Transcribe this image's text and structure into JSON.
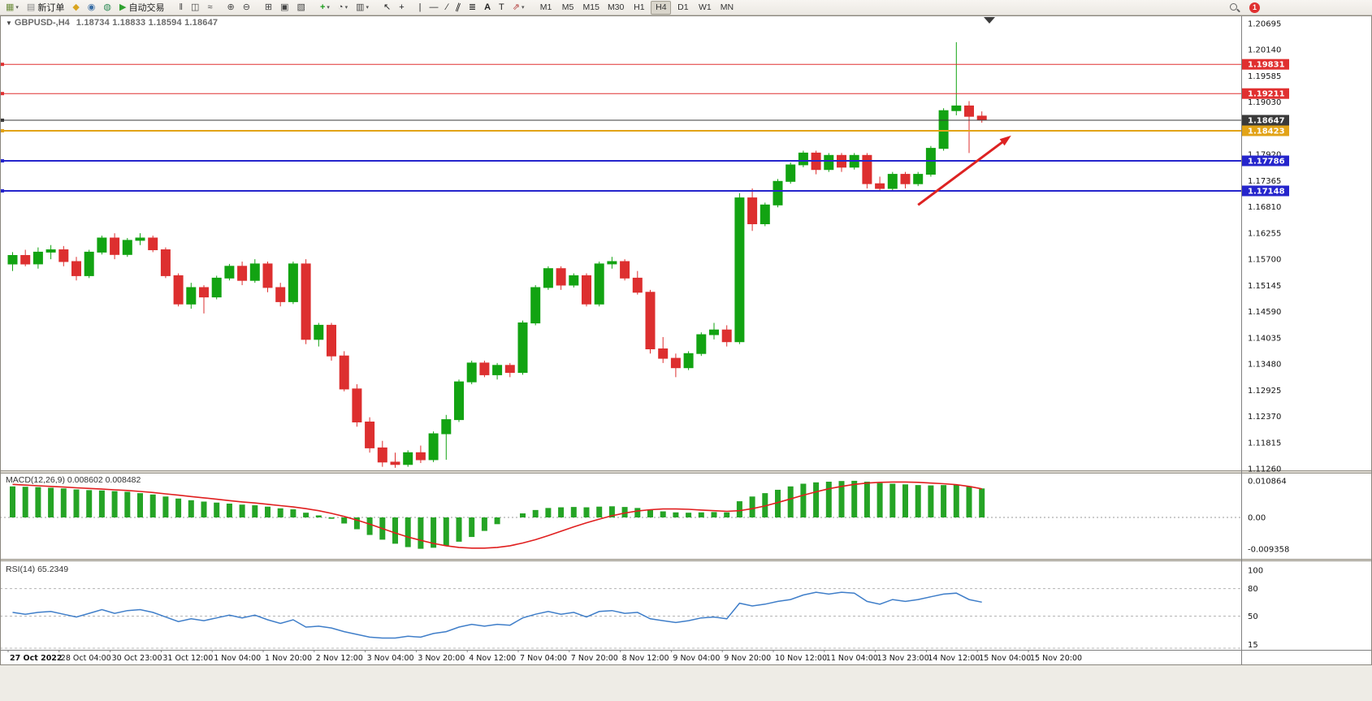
{
  "toolbar": {
    "groups": [
      [
        {
          "name": "new-chart",
          "icon": "new-chart-icon",
          "caret": true
        },
        {
          "name": "new-order",
          "icon": "new-order-icon",
          "label": "新订单"
        },
        {
          "name": "chart-wizard",
          "icon": "chart-wizard-icon"
        },
        {
          "name": "market-watch",
          "icon": "market-watch-icon"
        },
        {
          "name": "data-window",
          "icon": "data-window-icon"
        },
        {
          "name": "auto-trading",
          "icon": "autotrading-icon",
          "label": "自动交易"
        }
      ],
      [
        {
          "name": "bar-chart",
          "icon": "bars-icon"
        },
        {
          "name": "candlestick-chart",
          "icon": "candles-icon"
        },
        {
          "name": "line-chart",
          "icon": "line-chart-icon"
        }
      ],
      [
        {
          "name": "zoom-in",
          "icon": "zoom-in-icon"
        },
        {
          "name": "zoom-out",
          "icon": "zoom-out-icon"
        }
      ],
      [
        {
          "name": "tile-windows",
          "icon": "tile-windows-icon"
        },
        {
          "name": "auto-arrange",
          "icon": "arrange-icon"
        },
        {
          "name": "cascade-windows",
          "icon": "cascade-windows-icon"
        }
      ],
      [
        {
          "name": "indicators",
          "icon": "indicators-icon",
          "caret": true
        },
        {
          "name": "periods",
          "icon": "periods-icon",
          "caret": true
        },
        {
          "name": "templates",
          "icon": "templates-icon",
          "caret": true
        }
      ],
      [
        {
          "name": "cursor",
          "icon": "cursor-icon"
        },
        {
          "name": "crosshair",
          "icon": "crosshair-icon"
        }
      ],
      [
        {
          "name": "vertical-line",
          "icon": "vline-icon"
        },
        {
          "name": "horizontal-line",
          "icon": "hline-icon"
        },
        {
          "name": "trendline",
          "icon": "trendline-icon"
        },
        {
          "name": "equidistant-channel",
          "icon": "channel-icon"
        },
        {
          "name": "fibonacci",
          "icon": "fibonacci-icon"
        },
        {
          "name": "text",
          "icon": "text-icon"
        },
        {
          "name": "text-label",
          "icon": "label-icon"
        },
        {
          "name": "arrows",
          "icon": "arrows-icon",
          "caret": true
        }
      ]
    ],
    "timeframes": [
      "M1",
      "M5",
      "M15",
      "M30",
      "H1",
      "H4",
      "D1",
      "W1",
      "MN"
    ],
    "active_timeframe": "H4",
    "notification_badge": "1"
  },
  "chart": {
    "header": {
      "collapse_icon": "▼",
      "symbol": "GBPUSD-,H4",
      "open": "1.18734",
      "high": "1.18833",
      "low": "1.18594",
      "close": "1.18647"
    },
    "macd_label": "MACD(12,26,9) 0.008602 0.008482",
    "rsi_label": "RSI(14) 65.2349"
  },
  "chart_data": {
    "type": "candlestick",
    "symbol": "GBPUSD-,H4",
    "timeframe": "H4",
    "current_bar_ohlc": {
      "open": 1.18734,
      "high": 1.18833,
      "low": 1.18594,
      "close": 1.18647
    },
    "colors": {
      "up": "#12a312",
      "down": "#dd2f2f",
      "macd_histogram": "#25a425",
      "macd_signal": "#e01f1f",
      "rsi_line": "#3f7ec9",
      "arrow": "#dd2222",
      "current_price_line": "#3a3a3a"
    },
    "price_axis_labels": [
      "1.20695",
      "1.20140",
      "1.19585",
      "1.19030",
      "1.18475",
      "1.17920",
      "1.17365",
      "1.16810",
      "1.16255",
      "1.15700",
      "1.15145",
      "1.14590",
      "1.14035",
      "1.13480",
      "1.12925",
      "1.12370",
      "1.11815",
      "1.11260"
    ],
    "time_axis_labels": [
      "27 Oct 2022",
      "28 Oct 04:00",
      "30 Oct 23:00",
      "31 Oct 12:00",
      "1 Nov 04:00",
      "1 Nov 20:00",
      "2 Nov 12:00",
      "3 Nov 04:00",
      "3 Nov 20:00",
      "4 Nov 12:00",
      "7 Nov 04:00",
      "7 Nov 20:00",
      "8 Nov 12:00",
      "9 Nov 04:00",
      "9 Nov 20:00",
      "10 Nov 12:00",
      "11 Nov 04:00",
      "13 Nov 23:00",
      "14 Nov 12:00",
      "15 Nov 04:00",
      "15 Nov 20:00"
    ],
    "hlines": [
      {
        "price": 1.19831,
        "label": "1.19831",
        "color": "#e03030",
        "width": 1
      },
      {
        "price": 1.19211,
        "label": "1.19211",
        "color": "#e03030",
        "width": 1
      },
      {
        "price": 1.18647,
        "label": "1.18647",
        "color": "#3a3a3a",
        "width": 1,
        "role": "current-price"
      },
      {
        "price": 1.18423,
        "label": "1.18423",
        "color": "#e2a317",
        "width": 2
      },
      {
        "price": 1.17786,
        "label": "1.17786",
        "color": "#2525cc",
        "width": 2
      },
      {
        "price": 1.17148,
        "label": "1.17148",
        "color": "#2525cc",
        "width": 2
      }
    ],
    "candles": [
      [
        1.156,
        1.1585,
        1.1545,
        1.1578
      ],
      [
        1.1578,
        1.159,
        1.1555,
        1.156
      ],
      [
        1.156,
        1.1595,
        1.155,
        1.1585
      ],
      [
        1.1585,
        1.16,
        1.157,
        1.159
      ],
      [
        1.159,
        1.1598,
        1.1555,
        1.1565
      ],
      [
        1.1565,
        1.1575,
        1.1525,
        1.1535
      ],
      [
        1.1535,
        1.159,
        1.153,
        1.1585
      ],
      [
        1.1585,
        1.162,
        1.158,
        1.1615
      ],
      [
        1.1615,
        1.1625,
        1.157,
        1.158
      ],
      [
        1.158,
        1.1615,
        1.1575,
        1.161
      ],
      [
        1.161,
        1.1625,
        1.16,
        1.1615
      ],
      [
        1.1615,
        1.162,
        1.1585,
        1.159
      ],
      [
        1.159,
        1.1595,
        1.153,
        1.1535
      ],
      [
        1.1535,
        1.154,
        1.147,
        1.1475
      ],
      [
        1.1475,
        1.152,
        1.1465,
        1.151
      ],
      [
        1.151,
        1.1515,
        1.1455,
        1.149
      ],
      [
        1.149,
        1.1535,
        1.1485,
        1.153
      ],
      [
        1.153,
        1.156,
        1.1525,
        1.1555
      ],
      [
        1.1555,
        1.1565,
        1.1515,
        1.1525
      ],
      [
        1.1525,
        1.157,
        1.152,
        1.156
      ],
      [
        1.156,
        1.1565,
        1.15,
        1.151
      ],
      [
        1.151,
        1.152,
        1.147,
        1.148
      ],
      [
        1.148,
        1.1565,
        1.1475,
        1.156
      ],
      [
        1.156,
        1.157,
        1.139,
        1.14
      ],
      [
        1.14,
        1.1435,
        1.1385,
        1.143
      ],
      [
        1.143,
        1.1435,
        1.1355,
        1.1365
      ],
      [
        1.1365,
        1.1375,
        1.129,
        1.1295
      ],
      [
        1.1295,
        1.1305,
        1.1215,
        1.1225
      ],
      [
        1.1225,
        1.1235,
        1.116,
        1.117
      ],
      [
        1.117,
        1.1185,
        1.113,
        1.114
      ],
      [
        1.114,
        1.116,
        1.1128,
        1.1135
      ],
      [
        1.1135,
        1.1165,
        1.113,
        1.116
      ],
      [
        1.116,
        1.1175,
        1.1138,
        1.1145
      ],
      [
        1.1145,
        1.1205,
        1.114,
        1.12
      ],
      [
        1.12,
        1.124,
        1.1145,
        1.123
      ],
      [
        1.123,
        1.1315,
        1.1225,
        1.131
      ],
      [
        1.131,
        1.1355,
        1.1305,
        1.135
      ],
      [
        1.135,
        1.1355,
        1.132,
        1.1325
      ],
      [
        1.1325,
        1.135,
        1.1315,
        1.1345
      ],
      [
        1.1345,
        1.135,
        1.132,
        1.133
      ],
      [
        1.133,
        1.144,
        1.1325,
        1.1435
      ],
      [
        1.1435,
        1.1515,
        1.143,
        1.151
      ],
      [
        1.151,
        1.1555,
        1.1505,
        1.155
      ],
      [
        1.155,
        1.1555,
        1.1505,
        1.1515
      ],
      [
        1.1515,
        1.154,
        1.151,
        1.1535
      ],
      [
        1.1535,
        1.154,
        1.147,
        1.1475
      ],
      [
        1.1475,
        1.1565,
        1.147,
        1.156
      ],
      [
        1.156,
        1.1575,
        1.155,
        1.1565
      ],
      [
        1.1565,
        1.157,
        1.1525,
        1.153
      ],
      [
        1.153,
        1.1545,
        1.1495,
        1.15
      ],
      [
        1.15,
        1.1505,
        1.137,
        1.138
      ],
      [
        1.138,
        1.1405,
        1.135,
        1.136
      ],
      [
        1.136,
        1.137,
        1.132,
        1.134
      ],
      [
        1.134,
        1.1375,
        1.1335,
        1.137
      ],
      [
        1.137,
        1.1415,
        1.1365,
        1.141
      ],
      [
        1.141,
        1.1435,
        1.14,
        1.142
      ],
      [
        1.142,
        1.143,
        1.1385,
        1.1395
      ],
      [
        1.1395,
        1.171,
        1.139,
        1.17
      ],
      [
        1.17,
        1.172,
        1.163,
        1.1645
      ],
      [
        1.1645,
        1.169,
        1.164,
        1.1685
      ],
      [
        1.1685,
        1.174,
        1.168,
        1.1735
      ],
      [
        1.1735,
        1.1775,
        1.173,
        1.177
      ],
      [
        1.177,
        1.18,
        1.1765,
        1.1795
      ],
      [
        1.1795,
        1.18,
        1.175,
        1.176
      ],
      [
        1.176,
        1.1795,
        1.1755,
        1.179
      ],
      [
        1.179,
        1.1795,
        1.1755,
        1.1765
      ],
      [
        1.1765,
        1.1795,
        1.176,
        1.179
      ],
      [
        1.179,
        1.1795,
        1.172,
        1.173
      ],
      [
        1.173,
        1.1745,
        1.1715,
        1.172
      ],
      [
        1.172,
        1.1755,
        1.1715,
        1.175
      ],
      [
        1.175,
        1.1755,
        1.172,
        1.173
      ],
      [
        1.173,
        1.1755,
        1.1725,
        1.175
      ],
      [
        1.175,
        1.181,
        1.1745,
        1.1805
      ],
      [
        1.1805,
        1.189,
        1.18,
        1.1885
      ],
      [
        1.1885,
        1.203,
        1.1875,
        1.1895
      ],
      [
        1.1895,
        1.1905,
        1.1795,
        1.1873
      ],
      [
        1.18734,
        1.18833,
        1.18594,
        1.18647
      ]
    ],
    "macd": {
      "main_value": 0.008602,
      "signal_value": 0.008482,
      "axis_labels": [
        "0.010864",
        "0.00",
        "-0.009358"
      ],
      "histogram": [
        0.0092,
        0.0091,
        0.009,
        0.0088,
        0.0086,
        0.0083,
        0.0081,
        0.008,
        0.0078,
        0.0076,
        0.0072,
        0.0068,
        0.0062,
        0.0056,
        0.0051,
        0.0047,
        0.0044,
        0.0041,
        0.0038,
        0.0036,
        0.0032,
        0.0027,
        0.0024,
        0.0014,
        0.0006,
        -0.0004,
        -0.0018,
        -0.0035,
        -0.0052,
        -0.0066,
        -0.0078,
        -0.0088,
        -0.0093,
        -0.009,
        -0.0083,
        -0.0072,
        -0.0058,
        -0.004,
        -0.002,
        0.0,
        0.0012,
        0.0022,
        0.0028,
        0.003,
        0.0031,
        0.003,
        0.0032,
        0.0033,
        0.0031,
        0.0028,
        0.0022,
        0.0018,
        0.0015,
        0.0014,
        0.0015,
        0.0016,
        0.0015,
        0.0048,
        0.0062,
        0.0072,
        0.0082,
        0.0092,
        0.01,
        0.0104,
        0.0106,
        0.0108,
        0.01086,
        0.0106,
        0.0102,
        0.01,
        0.0098,
        0.0096,
        0.0095,
        0.0096,
        0.0097,
        0.0093,
        0.0086
      ],
      "signal": [
        0.0098,
        0.0096,
        0.0094,
        0.0092,
        0.009,
        0.0088,
        0.0086,
        0.0084,
        0.0082,
        0.008,
        0.0077,
        0.0074,
        0.007,
        0.0066,
        0.0062,
        0.0058,
        0.0054,
        0.005,
        0.0046,
        0.0043,
        0.0039,
        0.0035,
        0.0031,
        0.0026,
        0.002,
        0.0012,
        0.0003,
        -0.0008,
        -0.002,
        -0.0033,
        -0.0046,
        -0.0058,
        -0.0068,
        -0.0077,
        -0.0084,
        -0.0089,
        -0.0091,
        -0.0091,
        -0.0089,
        -0.0084,
        -0.0076,
        -0.0066,
        -0.0054,
        -0.0041,
        -0.0028,
        -0.0016,
        -0.0005,
        0.0005,
        0.0013,
        0.0019,
        0.0023,
        0.0025,
        0.0025,
        0.0024,
        0.0022,
        0.002,
        0.0018,
        0.002,
        0.0026,
        0.0034,
        0.0044,
        0.0055,
        0.0066,
        0.0076,
        0.0085,
        0.0092,
        0.0098,
        0.0102,
        0.0104,
        0.0105,
        0.0105,
        0.0104,
        0.0102,
        0.01,
        0.0097,
        0.0092,
        0.00848
      ]
    },
    "rsi": {
      "value": 65.2349,
      "axis_labels": [
        "100",
        "80",
        "50",
        "15"
      ],
      "levels": [
        80,
        50,
        15
      ],
      "values": [
        54,
        52,
        54,
        55,
        52,
        49,
        53,
        57,
        53,
        56,
        57,
        54,
        49,
        44,
        47,
        45,
        48,
        51,
        48,
        51,
        46,
        42,
        46,
        38,
        39,
        37,
        33,
        30,
        27,
        26,
        26,
        28,
        27,
        31,
        33,
        38,
        41,
        39,
        41,
        40,
        48,
        52,
        55,
        52,
        54,
        49,
        55,
        56,
        53,
        54,
        47,
        45,
        43,
        45,
        48,
        49,
        47,
        64,
        61,
        63,
        66,
        68,
        73,
        76,
        74,
        76,
        75,
        66,
        63,
        68,
        66,
        68,
        71,
        74,
        75,
        68,
        65.23
      ]
    },
    "arrow": {
      "from_bar": 71,
      "from_price": 1.1685,
      "to_bar": 78.3,
      "to_price": 1.1832
    }
  }
}
